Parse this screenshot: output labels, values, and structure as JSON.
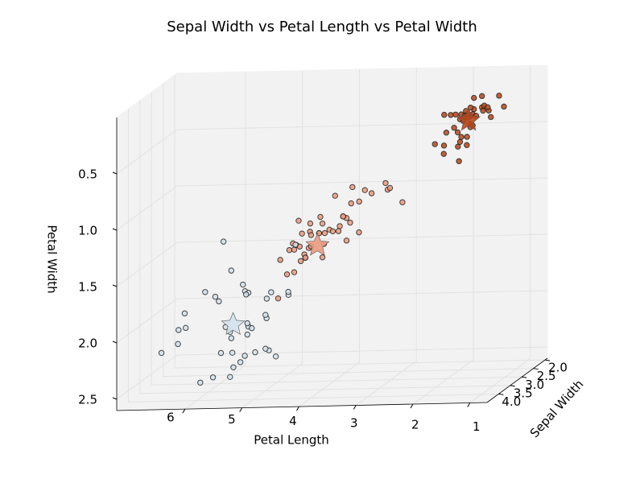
{
  "chart_data": {
    "type": "scatter3d",
    "title": "Sepal Width  vs  Petal Length  vs  Petal Width",
    "xlabel": "Petal Length",
    "ylabel": "Sepal Width",
    "zlabel": "Petal Width",
    "xlim": [
      0.7,
      7.2
    ],
    "ylim": [
      1.9,
      4.5
    ],
    "zlim": [
      0,
      2.6
    ],
    "zinverted": true,
    "xticks": [
      1,
      2,
      3,
      4,
      5,
      6
    ],
    "yticks": [
      {
        "value": 2,
        "label": "2.0"
      },
      2.5,
      {
        "value": 3,
        "label": "3.0"
      },
      3.5,
      {
        "value": 4,
        "label": "4.0"
      }
    ],
    "zticks": [
      0.5,
      {
        "value": 1,
        "label": "1.0"
      },
      1.5,
      {
        "value": 2,
        "label": "2.0"
      },
      2.5
    ],
    "grid": true,
    "series": [
      {
        "color": "#b5481c",
        "x": [
          1.4,
          1.4,
          1.3,
          1.5,
          1.4,
          1.7,
          1.4,
          1.5,
          1.4,
          1.5,
          1.5,
          1.6,
          1.4,
          1.1,
          1.2,
          1.5,
          1.3,
          1.4,
          1.7,
          1.5,
          1.7,
          1.5,
          1.0,
          1.7,
          1.9,
          1.6,
          1.6,
          1.5,
          1.4,
          1.6,
          1.5,
          1.5,
          1.4,
          1.2,
          1.3,
          1.3,
          1.3,
          1.6,
          1.9,
          1.4
        ],
        "y": [
          3.5,
          3.0,
          3.2,
          3.1,
          3.6,
          3.9,
          3.4,
          3.4,
          2.9,
          3.1,
          3.7,
          3.4,
          3.0,
          3.0,
          4.0,
          4.4,
          3.9,
          3.5,
          3.8,
          3.8,
          3.4,
          3.7,
          3.6,
          3.3,
          3.4,
          3.0,
          3.4,
          3.5,
          3.4,
          3.2,
          3.4,
          4.1,
          4.2,
          3.2,
          3.5,
          3.0,
          2.3,
          3.5,
          3.8,
          3.8
        ],
        "z": [
          0.2,
          0.2,
          0.2,
          0.2,
          0.2,
          0.4,
          0.3,
          0.2,
          0.2,
          0.1,
          0.2,
          0.2,
          0.1,
          0.1,
          0.2,
          0.4,
          0.4,
          0.3,
          0.3,
          0.3,
          0.2,
          0.4,
          0.2,
          0.5,
          0.2,
          0.2,
          0.4,
          0.2,
          0.2,
          0.2,
          0.4,
          0.1,
          0.2,
          0.2,
          0.2,
          0.2,
          0.3,
          0.6,
          0.4,
          0.2
        ],
        "center": [
          1.46,
          3.43,
          0.25
        ]
      },
      {
        "color": "#ea9a7e",
        "x": [
          4.7,
          4.5,
          4.9,
          4.0,
          4.6,
          4.5,
          4.7,
          3.3,
          4.6,
          3.9,
          3.5,
          4.2,
          4.0,
          4.7,
          3.6,
          4.4,
          4.5,
          4.1,
          4.5,
          3.9,
          4.0,
          4.9,
          4.7,
          4.3,
          4.4,
          4.8,
          3.5,
          3.8,
          3.7,
          3.9,
          4.5,
          4.7,
          4.4,
          4.1,
          4.0,
          4.4,
          4.6,
          4.0,
          3.3,
          4.2,
          4.2,
          4.2,
          4.3,
          3.0,
          4.1,
          5.1,
          4.9
        ],
        "y": [
          3.2,
          3.2,
          3.1,
          2.3,
          2.8,
          2.8,
          3.3,
          2.4,
          2.9,
          2.7,
          2.0,
          3.0,
          2.2,
          2.9,
          2.9,
          3.1,
          3.0,
          2.7,
          2.2,
          2.5,
          2.8,
          2.5,
          2.8,
          2.9,
          3.0,
          2.8,
          2.6,
          2.4,
          2.4,
          2.7,
          3.0,
          2.3,
          3.0,
          2.5,
          2.6,
          2.6,
          3.0,
          2.6,
          2.3,
          2.7,
          3.0,
          2.9,
          2.9,
          2.5,
          2.8,
          2.7,
          2.5
        ],
        "z": [
          1.4,
          1.5,
          1.5,
          1.3,
          1.5,
          1.3,
          1.6,
          1.0,
          1.3,
          1.4,
          1.0,
          1.5,
          1.0,
          1.4,
          1.3,
          1.4,
          1.5,
          1.0,
          1.5,
          1.1,
          1.3,
          1.5,
          1.2,
          1.3,
          1.4,
          1.4,
          1.0,
          1.1,
          1.0,
          1.2,
          1.5,
          1.3,
          1.3,
          1.3,
          1.2,
          1.2,
          1.4,
          1.2,
          1.0,
          1.3,
          1.2,
          1.3,
          1.3,
          1.1,
          1.3,
          1.9,
          1.7
        ],
        "center": [
          4.39,
          2.75,
          1.43
        ]
      },
      {
        "color": "#d3e2ec",
        "x": [
          6.0,
          5.9,
          5.6,
          5.8,
          6.6,
          6.3,
          5.8,
          6.1,
          5.1,
          5.3,
          5.5,
          5.1,
          5.3,
          5.5,
          6.7,
          6.9,
          5.7,
          6.7,
          5.7,
          6.0,
          5.6,
          5.8,
          6.1,
          6.4,
          5.6,
          6.1,
          5.6,
          5.5,
          5.4,
          5.6,
          5.1,
          5.9,
          5.7,
          5.2,
          5.0,
          5.2,
          5.4,
          5.1,
          5.0,
          4.8
        ],
        "y": [
          3.3,
          3.0,
          2.9,
          3.0,
          3.0,
          2.9,
          2.5,
          3.6,
          3.2,
          2.7,
          3.0,
          2.8,
          3.2,
          3.0,
          3.8,
          2.6,
          3.2,
          2.8,
          3.3,
          3.2,
          2.8,
          3.0,
          2.8,
          3.8,
          2.8,
          2.6,
          3.4,
          3.1,
          3.1,
          3.1,
          3.1,
          3.2,
          3.3,
          3.0,
          2.5,
          3.0,
          3.4,
          3.0,
          2.2,
          3.0
        ],
        "z": [
          2.5,
          2.1,
          1.8,
          2.2,
          2.1,
          1.8,
          1.8,
          2.5,
          2.0,
          1.9,
          2.1,
          2.4,
          2.3,
          1.8,
          2.2,
          2.3,
          2.3,
          2.0,
          2.1,
          1.8,
          2.1,
          1.6,
          1.9,
          2.0,
          2.2,
          1.4,
          2.4,
          1.8,
          2.1,
          2.4,
          2.3,
          2.3,
          2.5,
          2.3,
          1.9,
          2.0,
          2.3,
          1.8,
          1.5,
          1.8
        ],
        "center": [
          5.74,
          3.07,
          2.07
        ]
      }
    ]
  }
}
